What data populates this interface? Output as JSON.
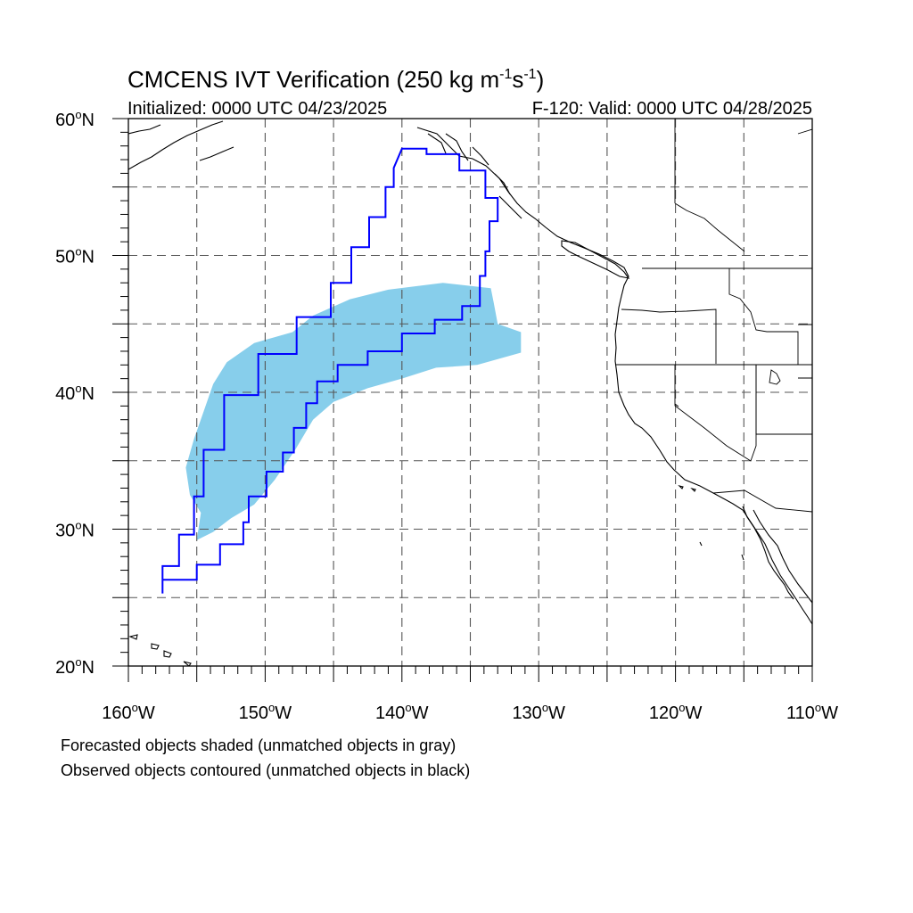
{
  "title": {
    "main": "CMCENS IVT Verification (250 kg m",
    "exp1": "-1",
    "mid": "s",
    "exp2": "-1",
    "close": ")"
  },
  "subtitle_left": "Initialized: 0000 UTC 04/23/2025",
  "subtitle_right": "F-120: Valid: 0000 UTC 04/28/2025",
  "axes": {
    "lon_range": [
      -160,
      -110
    ],
    "lat_range": [
      20,
      60
    ],
    "lat_labels": [
      {
        "value": 60,
        "num": "60",
        "hem": "N"
      },
      {
        "value": 50,
        "num": "50",
        "hem": "N"
      },
      {
        "value": 40,
        "num": "40",
        "hem": "N"
      },
      {
        "value": 30,
        "num": "30",
        "hem": "N"
      },
      {
        "value": 20,
        "num": "20",
        "hem": "N"
      }
    ],
    "lon_labels": [
      {
        "value": -160,
        "num": "160",
        "hem": "W"
      },
      {
        "value": -150,
        "num": "150",
        "hem": "W"
      },
      {
        "value": -140,
        "num": "140",
        "hem": "W"
      },
      {
        "value": -130,
        "num": "130",
        "hem": "W"
      },
      {
        "value": -120,
        "num": "120",
        "hem": "W"
      },
      {
        "value": -110,
        "num": "110",
        "hem": "W"
      }
    ],
    "grid_interval_deg": 5,
    "grid_style": "dashed"
  },
  "colors": {
    "forecast_fill": "#87ceeb",
    "observed_contour": "#0000ff",
    "coastline": "#000000",
    "grid": "#555555"
  },
  "forecast_object": {
    "description_key": "forecast matched IVT object",
    "outline_lonlat": [
      [
        -141.0,
        47.5
      ],
      [
        -137,
        48
      ],
      [
        -133.5,
        47.6
      ],
      [
        -133.3,
        46.6
      ],
      [
        -133.0,
        45.0
      ],
      [
        -131.3,
        44.4
      ],
      [
        -131.3,
        42.9
      ],
      [
        -134.5,
        42.0
      ],
      [
        -137.5,
        41.8
      ],
      [
        -140.0,
        41.0
      ],
      [
        -142.5,
        40.3
      ],
      [
        -145.0,
        39.3
      ],
      [
        -146.5,
        38.0
      ],
      [
        -147.8,
        35.8
      ],
      [
        -149.3,
        33.6
      ],
      [
        -150.8,
        31.8
      ],
      [
        -152.5,
        30.8
      ],
      [
        -153.8,
        29.8
      ],
      [
        -155.0,
        29.2
      ],
      [
        -154.7,
        31.2
      ],
      [
        -155.5,
        32.5
      ],
      [
        -155.8,
        34.5
      ],
      [
        -155.2,
        36.6
      ],
      [
        -154.5,
        38.6
      ],
      [
        -153.8,
        40.6
      ],
      [
        -152.8,
        42.2
      ],
      [
        -150.8,
        43.6
      ],
      [
        -148.0,
        44.4
      ],
      [
        -146.5,
        45.6
      ],
      [
        -143.8,
        46.8
      ]
    ]
  },
  "observed_object": {
    "description_key": "observed matched IVT object",
    "outline_lonlat": [
      [
        -140.0,
        57.8
      ],
      [
        -138.2,
        57.4
      ],
      [
        -135.8,
        56.2
      ],
      [
        -133.9,
        54.2
      ],
      [
        -133.0,
        52.5
      ],
      [
        -133.6,
        50.3
      ],
      [
        -133.9,
        48.5
      ],
      [
        -134.3,
        46.3
      ],
      [
        -135.6,
        45.3
      ],
      [
        -137.6,
        44.3
      ],
      [
        -140.0,
        43.0
      ],
      [
        -142.5,
        42.0
      ],
      [
        -144.7,
        40.8
      ],
      [
        -146.2,
        39.2
      ],
      [
        -147.0,
        37.4
      ],
      [
        -147.9,
        35.6
      ],
      [
        -148.7,
        34.2
      ],
      [
        -149.9,
        32.4
      ],
      [
        -151.2,
        30.5
      ],
      [
        -151.6,
        28.9
      ],
      [
        -153.3,
        27.4
      ],
      [
        -155.0,
        26.3
      ],
      [
        -157.5,
        25.3
      ],
      [
        -157.5,
        27.3
      ],
      [
        -156.3,
        29.6
      ],
      [
        -155.2,
        32.4
      ],
      [
        -154.5,
        35.8
      ],
      [
        -153.0,
        39.8
      ],
      [
        -150.5,
        42.8
      ],
      [
        -147.7,
        45.5
      ],
      [
        -145.2,
        48.0
      ],
      [
        -143.7,
        50.6
      ],
      [
        -142.4,
        52.8
      ],
      [
        -141.2,
        55.0
      ],
      [
        -140.6,
        56.4
      ]
    ]
  },
  "footer": {
    "line1": "Forecasted objects shaded (unmatched objects in gray)",
    "line2": "Observed objects contoured (unmatched objects in black)"
  }
}
